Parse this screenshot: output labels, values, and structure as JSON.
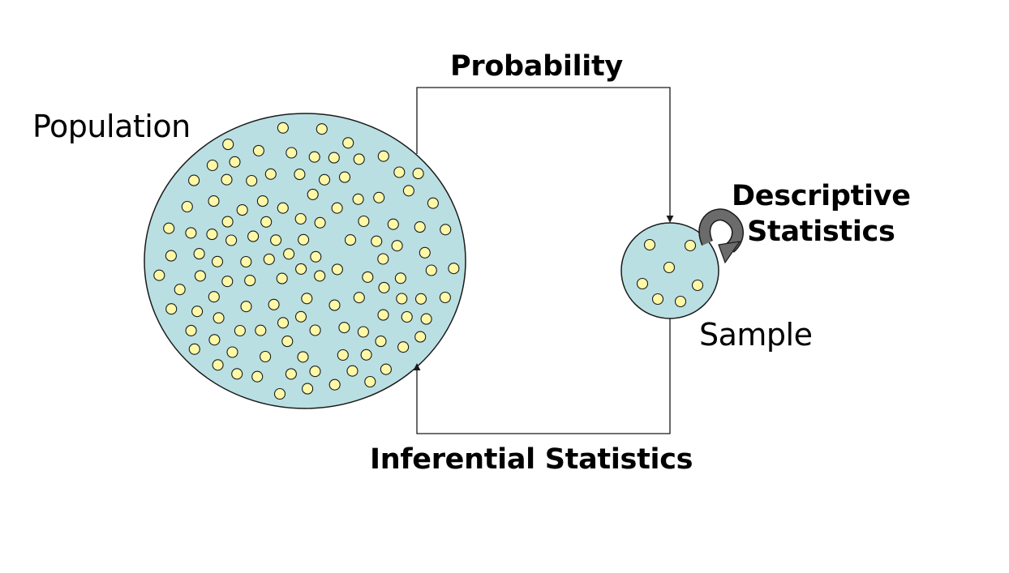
{
  "labels": {
    "population": "Population",
    "sample": "Sample",
    "probability": "Probability",
    "inferential": "Inferential Statistics",
    "descriptive_line1": "Descriptive",
    "descriptive_line2": "Statistics"
  },
  "colors": {
    "circle_fill": "#b9dfe2",
    "circle_stroke": "#1a1a1a",
    "dot_fill": "#fff8a6",
    "dot_stroke": "#1a1a1a",
    "connector": "#1a1a1a",
    "curl_arrow": "#6b6b6b"
  },
  "population_dot_count": 118,
  "sample_dot_count": 7
}
